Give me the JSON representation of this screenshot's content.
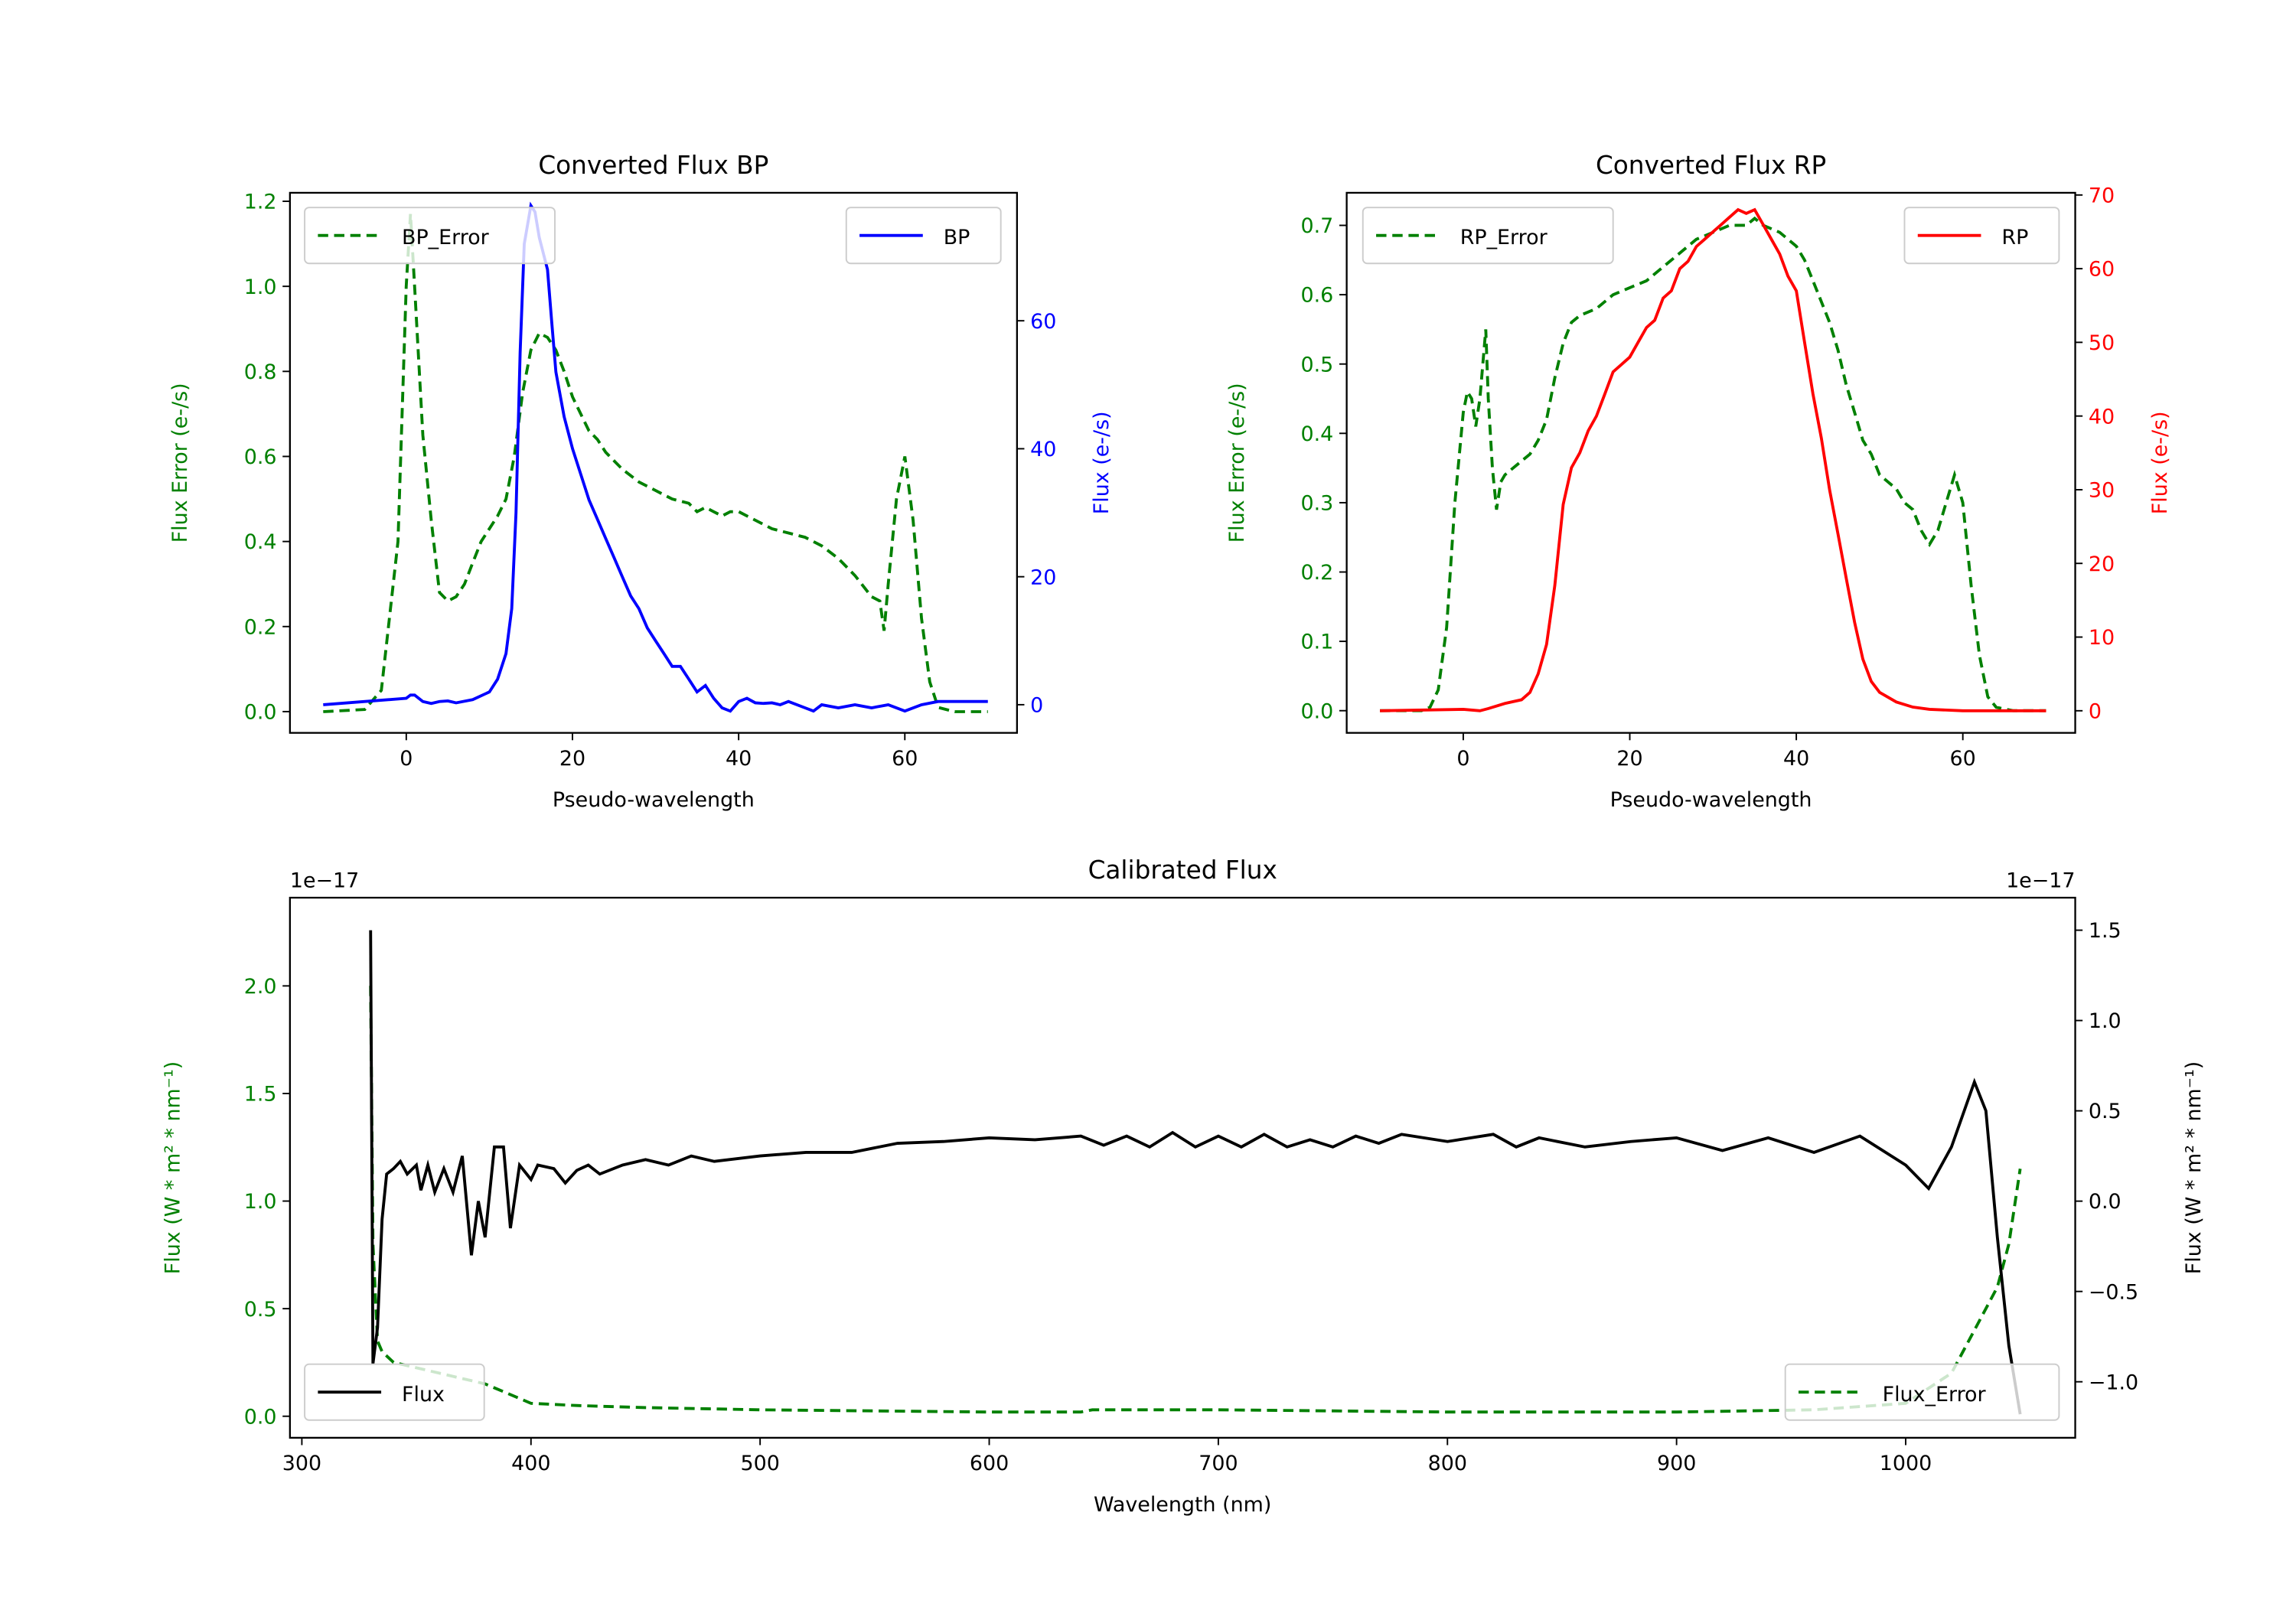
{
  "colors": {
    "error": "#008000",
    "bp": "#0000ff",
    "rp": "#ff0000",
    "flux": "#000000"
  },
  "chart_data": [
    {
      "type": "line",
      "title": "Converted Flux BP",
      "xlabel": "Pseudo-wavelength",
      "ylabel_left": "Flux Error (e-/s)",
      "ylabel_right": "Flux (e-/s)",
      "xlim": [
        -14,
        73.5
      ],
      "ylim_left": [
        -0.05,
        1.22
      ],
      "ylim_right": [
        -4.4,
        80
      ],
      "xticks": [
        0,
        20,
        40,
        60
      ],
      "yticks_left": [
        0.0,
        0.2,
        0.4,
        0.6,
        0.8,
        1.0,
        1.2
      ],
      "yticks_right": [
        0,
        20,
        40,
        60
      ],
      "legend_left": {
        "label": "BP_Error",
        "placement": "upper-left"
      },
      "legend_right": {
        "label": "BP",
        "placement": "upper-right"
      },
      "error": {
        "name": "BP_Error",
        "axis": "left",
        "x": [
          -10,
          -5,
          -3,
          -1,
          0,
          0.5,
          1,
          2,
          3,
          4,
          5,
          6,
          7,
          8,
          9,
          10,
          11,
          12,
          13,
          14,
          15,
          16,
          17,
          18,
          19,
          20,
          21,
          22,
          23,
          24,
          25,
          26,
          28,
          30,
          32,
          34,
          35,
          36,
          37,
          38,
          39,
          40,
          42,
          44,
          46,
          48,
          50,
          52,
          54,
          56,
          57,
          57.5,
          58,
          59,
          60,
          61,
          62,
          63,
          64,
          66,
          70
        ],
        "y": [
          0,
          0.005,
          0.05,
          0.4,
          1.0,
          1.17,
          1.0,
          0.65,
          0.45,
          0.28,
          0.26,
          0.27,
          0.3,
          0.35,
          0.4,
          0.43,
          0.46,
          0.5,
          0.6,
          0.75,
          0.85,
          0.89,
          0.88,
          0.85,
          0.8,
          0.74,
          0.7,
          0.66,
          0.64,
          0.61,
          0.59,
          0.57,
          0.54,
          0.52,
          0.5,
          0.49,
          0.47,
          0.48,
          0.47,
          0.46,
          0.47,
          0.47,
          0.45,
          0.43,
          0.42,
          0.41,
          0.39,
          0.36,
          0.32,
          0.27,
          0.26,
          0.19,
          0.3,
          0.5,
          0.6,
          0.45,
          0.22,
          0.07,
          0.01,
          0,
          0
        ]
      },
      "flux": {
        "name": "BP",
        "axis": "right",
        "x": [
          -10,
          0,
          0.5,
          1,
          2,
          3,
          4,
          5,
          6,
          8,
          10,
          11,
          12,
          12.7,
          13.2,
          13.7,
          14.2,
          15,
          15.5,
          16,
          17,
          17.5,
          18,
          19,
          20,
          21,
          22,
          23,
          24,
          25,
          26,
          27,
          28,
          29,
          30,
          31,
          32,
          33,
          34,
          35,
          36,
          37,
          38,
          39,
          40,
          41,
          42,
          43,
          44,
          45,
          46,
          48,
          49,
          50,
          52,
          54,
          56,
          58,
          60,
          62,
          64,
          70
        ],
        "y": [
          0,
          1,
          1.5,
          1.5,
          0.5,
          0.2,
          0.5,
          0.6,
          0.3,
          0.8,
          2,
          4,
          8,
          15,
          30,
          55,
          72,
          78,
          77,
          73,
          68,
          60,
          52,
          45,
          40,
          36,
          32,
          29,
          26,
          23,
          20,
          17,
          15,
          12,
          10,
          8,
          6,
          6,
          4,
          2,
          3,
          1,
          -0.5,
          -1,
          0.5,
          1,
          0.3,
          0.2,
          0.3,
          0,
          0.5,
          -0.5,
          -1,
          0,
          -0.5,
          0,
          -0.5,
          0,
          -1,
          0,
          0.5,
          0.5
        ]
      }
    },
    {
      "type": "line",
      "title": "Converted Flux RP",
      "xlabel": "Pseudo-wavelength",
      "ylabel_left": "Flux Error (e-/s)",
      "ylabel_right": "Flux (e-/s)",
      "xlim": [
        -14,
        73.5
      ],
      "ylim_left": [
        -0.032,
        0.747
      ],
      "ylim_right": [
        -3,
        70.3
      ],
      "xticks": [
        0,
        20,
        40,
        60
      ],
      "yticks_left": [
        0.0,
        0.1,
        0.2,
        0.3,
        0.4,
        0.5,
        0.6,
        0.7
      ],
      "yticks_right": [
        0,
        10,
        20,
        30,
        40,
        50,
        60,
        70
      ],
      "legend_left": {
        "label": "RP_Error",
        "placement": "upper-left"
      },
      "legend_right": {
        "label": "RP",
        "placement": "upper-right"
      },
      "error": {
        "name": "RP_Error",
        "axis": "left",
        "x": [
          -10,
          -5,
          -4,
          -3,
          -2,
          -1,
          0,
          0.5,
          1,
          1.5,
          2,
          2.7,
          3,
          3.5,
          4,
          4.5,
          5,
          6,
          7,
          8,
          9,
          10,
          11,
          12,
          13,
          14,
          16,
          18,
          20,
          22,
          24,
          26,
          28,
          30,
          32,
          34,
          35,
          36,
          38,
          40,
          41,
          42,
          43,
          44,
          45,
          46,
          47,
          48,
          49,
          50,
          52,
          53,
          54,
          55,
          56,
          57,
          58,
          59,
          60,
          61,
          62,
          63,
          64,
          66,
          70
        ],
        "y": [
          0,
          0,
          0.005,
          0.03,
          0.12,
          0.3,
          0.43,
          0.46,
          0.45,
          0.41,
          0.45,
          0.55,
          0.45,
          0.35,
          0.29,
          0.33,
          0.34,
          0.35,
          0.36,
          0.37,
          0.39,
          0.42,
          0.48,
          0.53,
          0.56,
          0.57,
          0.58,
          0.6,
          0.61,
          0.62,
          0.64,
          0.66,
          0.68,
          0.69,
          0.7,
          0.7,
          0.71,
          0.7,
          0.69,
          0.67,
          0.65,
          0.62,
          0.59,
          0.56,
          0.52,
          0.47,
          0.43,
          0.39,
          0.37,
          0.34,
          0.32,
          0.3,
          0.29,
          0.26,
          0.24,
          0.26,
          0.3,
          0.34,
          0.3,
          0.18,
          0.08,
          0.02,
          0.005,
          0,
          0
        ]
      },
      "flux": {
        "name": "RP",
        "axis": "right",
        "x": [
          -10,
          0,
          2,
          3,
          5,
          7,
          8,
          9,
          10,
          11,
          12,
          13,
          14,
          15,
          16,
          17,
          18,
          19,
          20,
          21,
          22,
          23,
          24,
          25,
          26,
          27,
          28,
          29,
          30,
          31,
          32,
          33,
          34,
          35,
          36,
          37,
          38,
          39,
          40,
          41,
          42,
          43,
          44,
          45,
          46,
          47,
          48,
          49,
          50,
          52,
          54,
          56,
          60,
          70
        ],
        "y": [
          0,
          0.2,
          0,
          0.3,
          1,
          1.5,
          2.5,
          5,
          9,
          17,
          28,
          33,
          35,
          38,
          40,
          43,
          46,
          47,
          48,
          50,
          52,
          53,
          56,
          57,
          60,
          61,
          63,
          64,
          65,
          66,
          67,
          68,
          67.5,
          68,
          66,
          64,
          62,
          59,
          57,
          50,
          43,
          37,
          30,
          24,
          18,
          12,
          7,
          4,
          2.5,
          1.2,
          0.5,
          0.2,
          0,
          0
        ]
      }
    },
    {
      "type": "line",
      "title": "Calibrated Flux",
      "xlabel": "Wavelength (nm)",
      "ylabel_left": "Flux (W * m² * nm⁻¹)",
      "ylabel_right": "Flux (W * m² * nm⁻¹)",
      "offset_left": "1e−17",
      "offset_right": "1e−17",
      "xlim": [
        294.8,
        1074
      ],
      "ylim_left": [
        -0.1,
        2.41
      ],
      "ylim_right": [
        -1.31,
        1.68
      ],
      "xticks": [
        300,
        400,
        500,
        600,
        700,
        800,
        900,
        1000
      ],
      "yticks_left": [
        0.0,
        0.5,
        1.0,
        1.5,
        2.0
      ],
      "yticks_right": [
        -1.0,
        -0.5,
        0.0,
        0.5,
        1.0,
        1.5
      ],
      "legend_left": {
        "label": "Flux",
        "placement": "lower-left"
      },
      "legend_right": {
        "label": "Flux_Error",
        "placement": "lower-right"
      },
      "flux": {
        "name": "Flux",
        "axis": "right",
        "x": [
          330,
          331,
          333,
          335,
          337,
          340,
          343,
          346,
          350,
          352,
          355,
          358,
          362,
          366,
          370,
          374,
          377,
          380,
          384,
          388,
          391,
          395,
          400,
          403,
          410,
          415,
          420,
          425,
          430,
          440,
          450,
          460,
          470,
          480,
          500,
          520,
          540,
          560,
          580,
          600,
          620,
          640,
          650,
          660,
          670,
          680,
          690,
          700,
          710,
          720,
          730,
          740,
          750,
          760,
          770,
          780,
          800,
          820,
          830,
          840,
          860,
          880,
          900,
          920,
          940,
          960,
          980,
          1000,
          1010,
          1020,
          1030,
          1035,
          1040,
          1045,
          1050
        ],
        "y": [
          1.5,
          -0.9,
          -0.7,
          -0.1,
          0.15,
          0.18,
          0.22,
          0.15,
          0.2,
          0.06,
          0.2,
          0.05,
          0.18,
          0.05,
          0.25,
          -0.3,
          0.0,
          -0.2,
          0.3,
          0.3,
          -0.15,
          0.2,
          0.12,
          0.2,
          0.18,
          0.1,
          0.17,
          0.2,
          0.15,
          0.2,
          0.23,
          0.2,
          0.25,
          0.22,
          0.25,
          0.27,
          0.27,
          0.32,
          0.33,
          0.35,
          0.34,
          0.36,
          0.31,
          0.36,
          0.3,
          0.38,
          0.3,
          0.36,
          0.3,
          0.37,
          0.3,
          0.34,
          0.3,
          0.36,
          0.32,
          0.37,
          0.33,
          0.37,
          0.3,
          0.35,
          0.3,
          0.33,
          0.35,
          0.28,
          0.35,
          0.27,
          0.36,
          0.2,
          0.07,
          0.3,
          0.66,
          0.5,
          -0.2,
          -0.8,
          -1.18
        ]
      },
      "error": {
        "name": "Flux_Error",
        "axis": "left",
        "x": [
          330,
          331,
          333,
          335,
          340,
          360,
          380,
          400,
          420,
          450,
          500,
          600,
          640,
          645,
          700,
          800,
          900,
          960,
          1000,
          1020,
          1030,
          1040,
          1045,
          1050
        ],
        "y": [
          2.0,
          0.8,
          0.35,
          0.3,
          0.25,
          0.2,
          0.15,
          0.06,
          0.05,
          0.04,
          0.03,
          0.02,
          0.02,
          0.03,
          0.03,
          0.02,
          0.02,
          0.03,
          0.06,
          0.2,
          0.4,
          0.6,
          0.8,
          1.15
        ]
      }
    }
  ]
}
